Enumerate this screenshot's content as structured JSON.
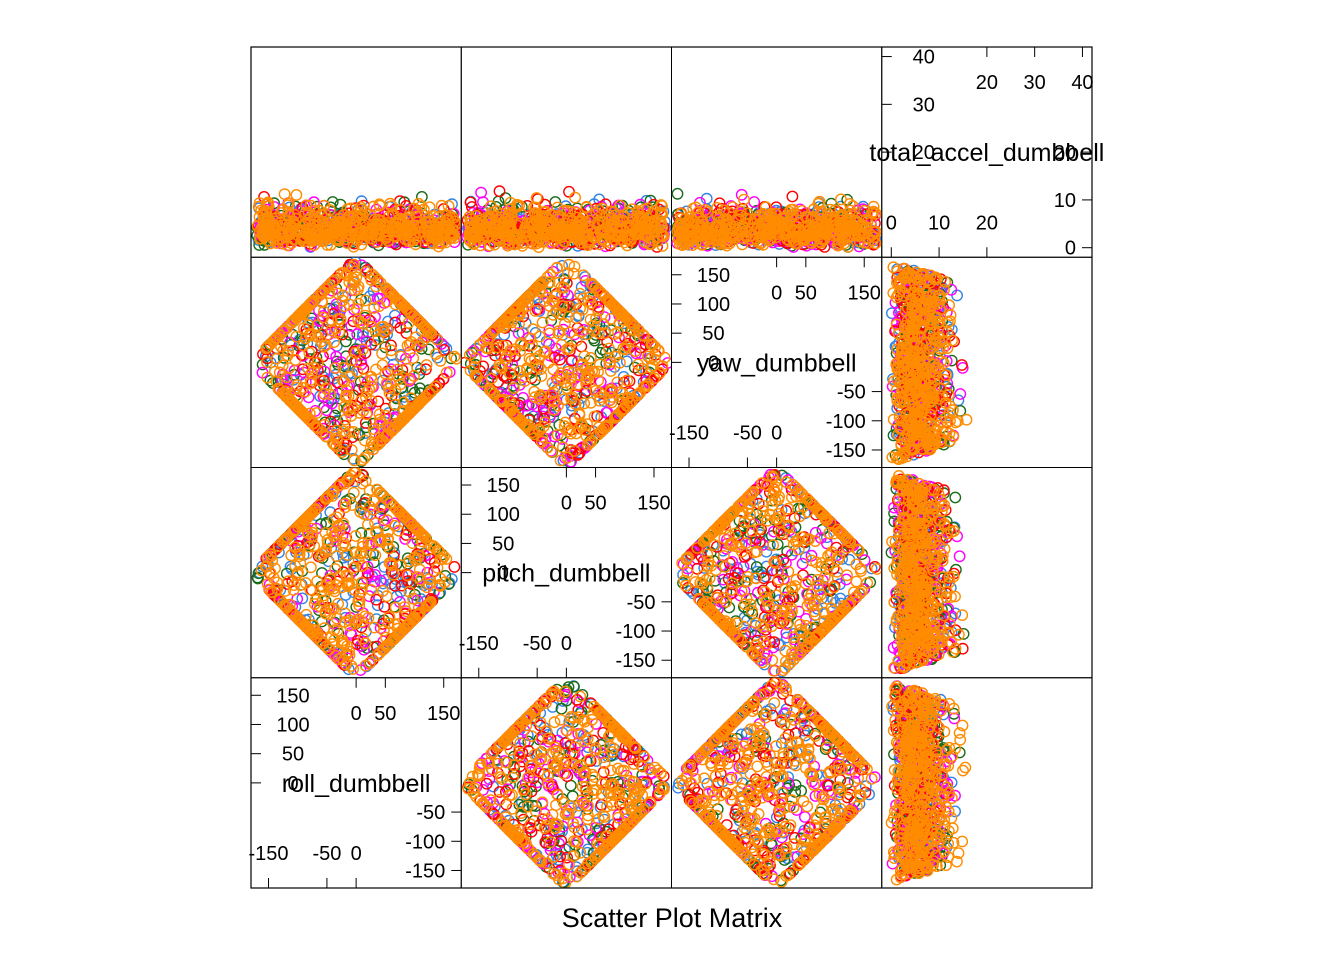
{
  "chart_data": {
    "type": "scatter",
    "layout": "scatter-plot-matrix",
    "title": "Scatter Plot Matrix",
    "variables": [
      {
        "name": "roll_dumbbell",
        "range": [
          -180,
          180
        ],
        "ticks_left": [
          {
            "value": 150,
            "label": "150"
          },
          {
            "value": 100,
            "label": "100"
          },
          {
            "value": 50,
            "label": "50"
          },
          {
            "value": 0,
            "label": "0"
          }
        ],
        "ticks_top": [
          {
            "value": 0,
            "label": "0"
          },
          {
            "value": 50,
            "label": "50"
          },
          {
            "value": 150,
            "label": "150"
          }
        ],
        "ticks_right": [
          {
            "value": -50,
            "label": "-50"
          },
          {
            "value": -100,
            "label": "-100"
          },
          {
            "value": -150,
            "label": "-150"
          }
        ],
        "ticks_bottom": [
          {
            "value": -150,
            "label": "-150"
          },
          {
            "value": -50,
            "label": "-50"
          },
          {
            "value": 0,
            "label": "0"
          }
        ]
      },
      {
        "name": "pitch_dumbbell",
        "range": [
          -180,
          180
        ],
        "ticks_left": [
          {
            "value": 150,
            "label": "150"
          },
          {
            "value": 100,
            "label": "100"
          },
          {
            "value": 50,
            "label": "50"
          },
          {
            "value": 0,
            "label": "0"
          }
        ],
        "ticks_top": [
          {
            "value": 0,
            "label": "0"
          },
          {
            "value": 50,
            "label": "50"
          },
          {
            "value": 150,
            "label": "150"
          }
        ],
        "ticks_right": [
          {
            "value": -50,
            "label": "-50"
          },
          {
            "value": -100,
            "label": "-100"
          },
          {
            "value": -150,
            "label": "-150"
          }
        ],
        "ticks_bottom": [
          {
            "value": -150,
            "label": "-150"
          },
          {
            "value": -50,
            "label": "-50"
          },
          {
            "value": 0,
            "label": "0"
          }
        ]
      },
      {
        "name": "yaw_dumbbell",
        "range": [
          -180,
          180
        ],
        "ticks_left": [
          {
            "value": 150,
            "label": "150"
          },
          {
            "value": 100,
            "label": "100"
          },
          {
            "value": 50,
            "label": "50"
          },
          {
            "value": 0,
            "label": "0"
          }
        ],
        "ticks_top": [
          {
            "value": 0,
            "label": "0"
          },
          {
            "value": 50,
            "label": "50"
          },
          {
            "value": 150,
            "label": "150"
          }
        ],
        "ticks_right": [
          {
            "value": -50,
            "label": "-50"
          },
          {
            "value": -100,
            "label": "-100"
          },
          {
            "value": -150,
            "label": "-150"
          }
        ],
        "ticks_bottom": [
          {
            "value": -150,
            "label": "-150"
          },
          {
            "value": -50,
            "label": "-50"
          },
          {
            "value": 0,
            "label": "0"
          }
        ]
      },
      {
        "name": "total_accel_dumbbell",
        "range": [
          -2,
          42
        ],
        "ticks_left": [
          {
            "value": 40,
            "label": "40"
          },
          {
            "value": 30,
            "label": "30"
          },
          {
            "value": 20,
            "label": "20"
          }
        ],
        "ticks_top": [
          {
            "value": 20,
            "label": "20"
          },
          {
            "value": 30,
            "label": "30"
          },
          {
            "value": 40,
            "label": "40"
          }
        ],
        "ticks_right": [
          {
            "value": 20,
            "label": "20"
          },
          {
            "value": 10,
            "label": "10"
          },
          {
            "value": 0,
            "label": "0"
          }
        ],
        "ticks_bottom": [
          {
            "value": 0,
            "label": "0"
          },
          {
            "value": 10,
            "label": "10"
          },
          {
            "value": 20,
            "label": "20"
          }
        ]
      }
    ],
    "series_colors": [
      "#3584e4",
      "#1a6b1a",
      "#ff00ff",
      "#ff0000",
      "#ff8c00"
    ],
    "grid": false,
    "legend": "none",
    "point_shape": "open-circle"
  }
}
